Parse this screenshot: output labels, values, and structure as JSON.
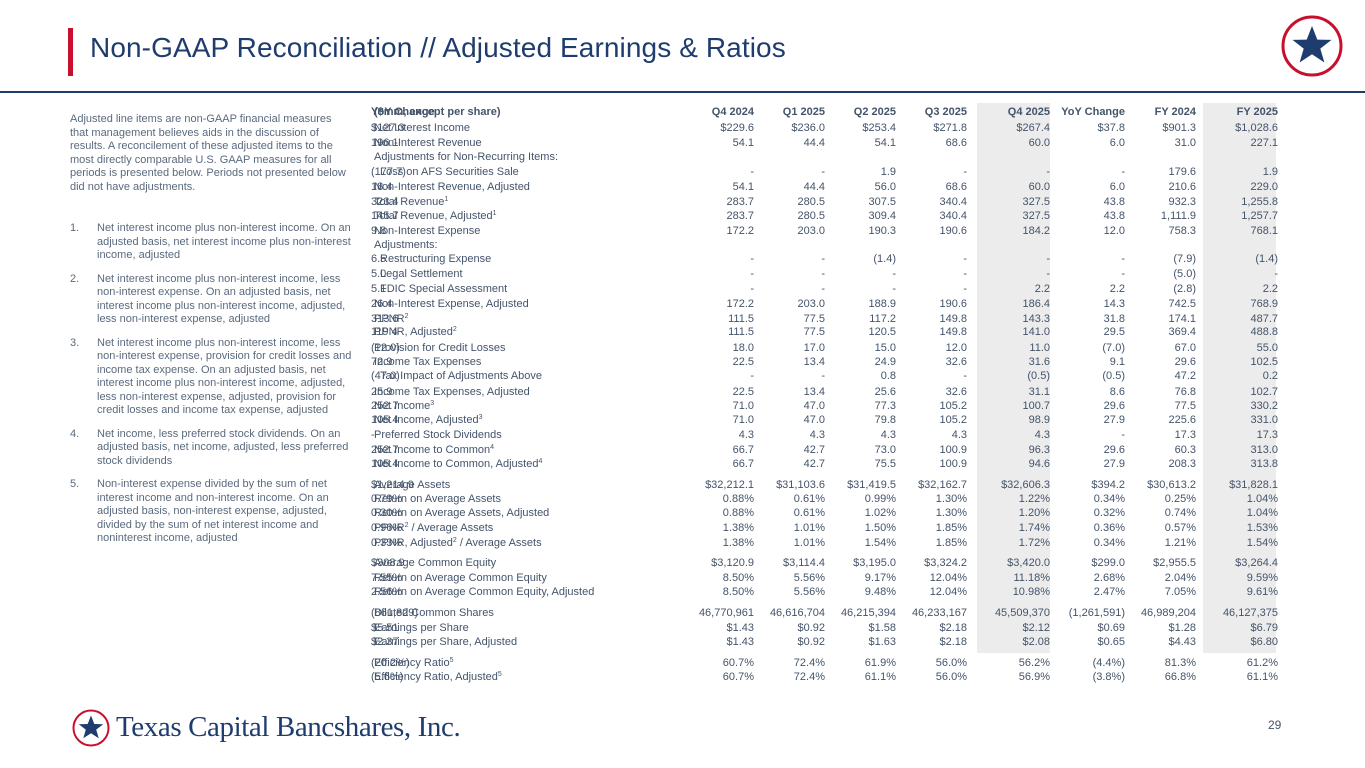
{
  "header": {
    "title": "Non-GAAP Reconciliation // Adjusted Earnings & Ratios"
  },
  "sidebar": {
    "intro": "Adjusted line items are non-GAAP financial measures that management believes aids in the discussion of results. A reconcilement of these adjusted items to the most directly comparable U.S. GAAP measures for all periods is presented below. Periods not presented below did not have adjustments.",
    "notes": [
      {
        "num": "1.",
        "text": "Net interest income plus non-interest income. On an adjusted basis, net interest income plus non-interest income, adjusted"
      },
      {
        "num": "2.",
        "text": "Net interest income plus non-interest income, less non-interest expense. On an adjusted basis, net interest income plus non-interest income, adjusted, less non-interest expense, adjusted"
      },
      {
        "num": "3.",
        "text": "Net interest income plus non-interest income, less non-interest expense, provision for credit losses and income tax expense. On an adjusted basis, net interest income plus non-interest income, adjusted, less non-interest expense, adjusted, provision for credit losses and income tax expense, adjusted"
      },
      {
        "num": "4.",
        "text": "Net income, less preferred stock dividends. On an adjusted basis, net income, adjusted, less preferred stock dividends"
      },
      {
        "num": "5.",
        "text": "Non-interest expense divided by the sum of net interest income and non-interest income. On an adjusted basis, non-interest expense, adjusted, divided by the sum of net interest income and noninterest income, adjusted"
      }
    ]
  },
  "table": {
    "columns": [
      "($mm, except per share)",
      "Q4 2024",
      "Q1 2025",
      "Q2 2025",
      "Q3 2025",
      "Q4 2025",
      "YoY Change",
      "FY 2024",
      "FY 2025",
      "YoY Change"
    ],
    "rows": [
      {
        "label": "Net Interest Income",
        "values": [
          "$229.6",
          "$236.0",
          "$253.4",
          "$271.8",
          "$267.4",
          "$37.8",
          "$901.3",
          "$1,028.6",
          "$127.3"
        ]
      },
      {
        "label": "Non-Interest Revenue",
        "values": [
          "54.1",
          "44.4",
          "54.1",
          "68.6",
          "60.0",
          "6.0",
          "31.0",
          "227.1",
          "196.1"
        ]
      },
      {
        "label": "Adjustments for Non-Recurring Items:",
        "values": [
          "",
          "",
          "",
          "",
          "",
          "",
          "",
          "",
          ""
        ]
      },
      {
        "label": "Loss on AFS Securities Sale",
        "indent": true,
        "values": [
          "-",
          "-",
          "1.9",
          "-",
          "-",
          "-",
          "179.6",
          "1.9",
          "(177.7)"
        ]
      },
      {
        "label": "Non-Interest Revenue, Adjusted",
        "border": true,
        "values": [
          "54.1",
          "44.4",
          "56.0",
          "68.6",
          "60.0",
          "6.0",
          "210.6",
          "229.0",
          "18.4"
        ]
      },
      {
        "label": "Total Revenue",
        "sup": "1",
        "border": true,
        "values": [
          "283.7",
          "280.5",
          "307.5",
          "340.4",
          "327.5",
          "43.8",
          "932.3",
          "1,255.8",
          "323.4"
        ]
      },
      {
        "label": "Total Revenue, Adjusted",
        "sup": "1",
        "values": [
          "283.7",
          "280.5",
          "309.4",
          "340.4",
          "327.5",
          "43.8",
          "1,111.9",
          "1,257.7",
          "145.7"
        ]
      },
      {
        "label": "Non-Interest Expense",
        "border": true,
        "values": [
          "172.2",
          "203.0",
          "190.3",
          "190.6",
          "184.2",
          "12.0",
          "758.3",
          "768.1",
          "9.8"
        ]
      },
      {
        "label": "Adjustments:",
        "values": [
          "",
          "",
          "",
          "",
          "",
          "",
          "",
          "",
          ""
        ]
      },
      {
        "label": "Restructuring Expense",
        "indent": true,
        "values": [
          "-",
          "-",
          "(1.4)",
          "-",
          "-",
          "-",
          "(7.9)",
          "(1.4)",
          "6.5"
        ]
      },
      {
        "label": "Legal Settlement",
        "indent": true,
        "values": [
          "-",
          "-",
          "-",
          "-",
          "-",
          "-",
          "(5.0)",
          "-",
          "5.0"
        ]
      },
      {
        "label": "FDIC Special Assessment",
        "indent": true,
        "values": [
          "-",
          "-",
          "-",
          "-",
          "2.2",
          "2.2",
          "(2.8)",
          "2.2",
          "5.1"
        ]
      },
      {
        "label": "Non-Interest Expense, Adjusted",
        "border": true,
        "values": [
          "172.2",
          "203.0",
          "188.9",
          "190.6",
          "186.4",
          "14.3",
          "742.5",
          "768.9",
          "26.4"
        ]
      },
      {
        "label": "PPNR",
        "sup": "2",
        "border": true,
        "values": [
          "111.5",
          "77.5",
          "117.2",
          "149.8",
          "143.3",
          "31.8",
          "174.1",
          "487.7",
          "313.6"
        ]
      },
      {
        "label": "PPNR, Adjusted",
        "sup": "2",
        "values": [
          "111.5",
          "77.5",
          "120.5",
          "149.8",
          "141.0",
          "29.5",
          "369.4",
          "488.8",
          "119.4"
        ]
      },
      {
        "label": "Provision for Credit Losses",
        "border": true,
        "values": [
          "18.0",
          "17.0",
          "15.0",
          "12.0",
          "11.0",
          "(7.0)",
          "67.0",
          "55.0",
          "(12.0)"
        ]
      },
      {
        "label": "Income Tax Expenses",
        "values": [
          "22.5",
          "13.4",
          "24.9",
          "32.6",
          "31.6",
          "9.1",
          "29.6",
          "102.5",
          "72.9"
        ]
      },
      {
        "label": "Tax Impact of Adjustments Above",
        "indent": true,
        "values": [
          "-",
          "-",
          "0.8",
          "-",
          "(0.5)",
          "(0.5)",
          "47.2",
          "0.2",
          "(47.0)"
        ]
      },
      {
        "label": "Income Tax Expenses, Adjusted",
        "border": true,
        "values": [
          "22.5",
          "13.4",
          "25.6",
          "32.6",
          "31.1",
          "8.6",
          "76.8",
          "102.7",
          "25.9"
        ]
      },
      {
        "label": "Net Income",
        "sup": "3",
        "border": true,
        "values": [
          "71.0",
          "47.0",
          "77.3",
          "105.2",
          "100.7",
          "29.6",
          "77.5",
          "330.2",
          "252.7"
        ]
      },
      {
        "label": "Net Income, Adjusted",
        "sup": "3",
        "values": [
          "71.0",
          "47.0",
          "79.8",
          "105.2",
          "98.9",
          "27.9",
          "225.6",
          "331.0",
          "105.4"
        ]
      },
      {
        "label": "Preferred Stock Dividends",
        "border": true,
        "values": [
          "4.3",
          "4.3",
          "4.3",
          "4.3",
          "4.3",
          "-",
          "17.3",
          "17.3",
          "-"
        ]
      },
      {
        "label": "Net Income to Common",
        "sup": "4",
        "border": true,
        "values": [
          "66.7",
          "42.7",
          "73.0",
          "100.9",
          "96.3",
          "29.6",
          "60.3",
          "313.0",
          "252.7"
        ]
      },
      {
        "label": "Net Income to Common, Adjusted",
        "sup": "4",
        "values": [
          "66.7",
          "42.7",
          "75.5",
          "100.9",
          "94.6",
          "27.9",
          "208.3",
          "313.8",
          "105.4"
        ]
      },
      {
        "label": "Average Assets",
        "border": true,
        "gap": true,
        "values": [
          "$32,212.1",
          "$31,103.6",
          "$31,419.5",
          "$32,162.7",
          "$32,606.3",
          "$394.2",
          "$30,613.2",
          "$31,828.1",
          "$1,214.9"
        ]
      },
      {
        "label": "Return on Average Assets",
        "values": [
          "0.88%",
          "0.61%",
          "0.99%",
          "1.30%",
          "1.22%",
          "0.34%",
          "0.25%",
          "1.04%",
          "0.79%"
        ]
      },
      {
        "label": "Return on Average Assets, Adjusted",
        "values": [
          "0.88%",
          "0.61%",
          "1.02%",
          "1.30%",
          "1.20%",
          "0.32%",
          "0.74%",
          "1.04%",
          "0.30%"
        ]
      },
      {
        "label": "PPNR",
        "sup": "2",
        "suffix": " / Average Assets",
        "values": [
          "1.38%",
          "1.01%",
          "1.50%",
          "1.85%",
          "1.74%",
          "0.36%",
          "0.57%",
          "1.53%",
          "0.96%"
        ]
      },
      {
        "label": "PPNR, Adjusted",
        "sup": "2",
        "suffix": " / Average Assets",
        "values": [
          "1.38%",
          "1.01%",
          "1.54%",
          "1.85%",
          "1.72%",
          "0.34%",
          "1.21%",
          "1.54%",
          "0.33%"
        ]
      },
      {
        "label": "Average Common Equity",
        "gap": true,
        "values": [
          "$3,120.9",
          "$3,114.4",
          "$3,195.0",
          "$3,324.2",
          "$3,420.0",
          "$299.0",
          "$2,955.5",
          "$3,264.4",
          "$308.9"
        ]
      },
      {
        "label": "Return on Average Common Equity",
        "values": [
          "8.50%",
          "5.56%",
          "9.17%",
          "12.04%",
          "11.18%",
          "2.68%",
          "2.04%",
          "9.59%",
          "7.55%"
        ]
      },
      {
        "label": "Return on Average Common Equity, Adjusted",
        "values": [
          "8.50%",
          "5.56%",
          "9.48%",
          "12.04%",
          "10.98%",
          "2.47%",
          "7.05%",
          "9.61%",
          "2.56%"
        ]
      },
      {
        "label": "Diluted Common Shares",
        "gap": true,
        "values": [
          "46,770,961",
          "46,616,704",
          "46,215,394",
          "46,233,167",
          "45,509,370",
          "(1,261,591)",
          "46,989,204",
          "46,127,375",
          "(861,829)"
        ]
      },
      {
        "label": "Earnings per Share",
        "values": [
          "$1.43",
          "$0.92",
          "$1.58",
          "$2.18",
          "$2.12",
          "$0.69",
          "$1.28",
          "$6.79",
          "$5.51"
        ]
      },
      {
        "label": "Earnings per Share, Adjusted",
        "values": [
          "$1.43",
          "$0.92",
          "$1.63",
          "$2.18",
          "$2.08",
          "$0.65",
          "$4.43",
          "$6.80",
          "$2.37"
        ]
      },
      {
        "label": "Efficiency Ratio",
        "sup": "5",
        "gap": true,
        "values": [
          "60.7%",
          "72.4%",
          "61.9%",
          "56.0%",
          "56.2%",
          "(4.4%)",
          "81.3%",
          "61.2%",
          "(20.2%)"
        ]
      },
      {
        "label": "Efficiency Ratio, Adjusted",
        "sup": "5",
        "values": [
          "60.7%",
          "72.4%",
          "61.1%",
          "56.0%",
          "56.9%",
          "(3.8%)",
          "66.8%",
          "61.1%",
          "(5.6%)"
        ]
      }
    ]
  },
  "footer": {
    "company": "Texas Capital Bancshares, Inc.",
    "page": "29"
  },
  "colors": {
    "navy": "#1f3c6e",
    "red": "#c8102e",
    "text": "#44546a",
    "shade": "#ececec"
  }
}
